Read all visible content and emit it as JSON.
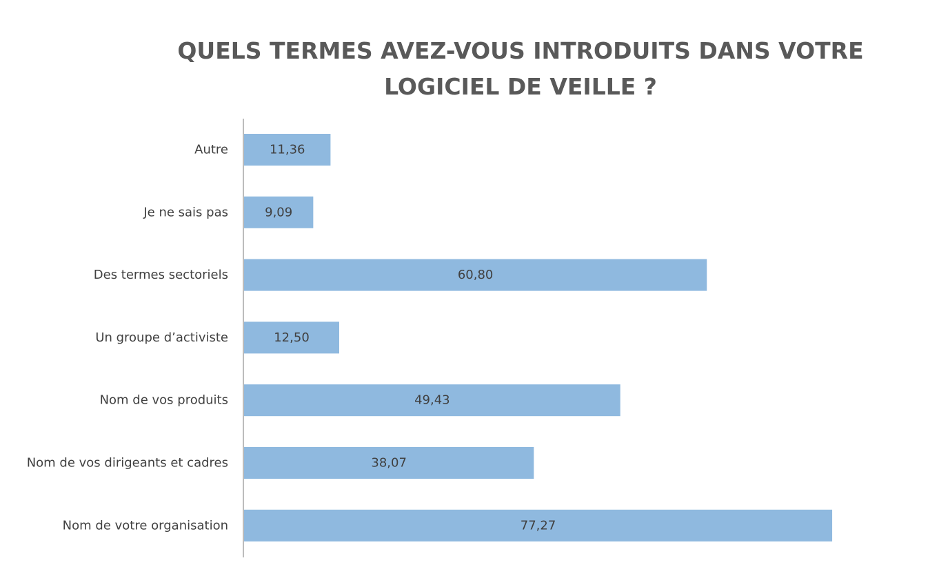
{
  "chart_data": {
    "type": "bar",
    "orientation": "horizontal",
    "title": "QUELS TERMES AVEZ-VOUS INTRODUITS DANS VOTRE LOGICIEL DE VEILLE ?",
    "categories": [
      "Autre",
      "Je ne sais pas",
      "Des termes sectoriels",
      "Un groupe d’activiste",
      "Nom de vos produits",
      "Nom de vos dirigeants et cadres",
      "Nom de votre organisation"
    ],
    "values": [
      11.36,
      9.09,
      60.8,
      12.5,
      49.43,
      38.07,
      77.27
    ],
    "value_labels": [
      "11,36",
      "9,09",
      "60,80",
      "12,50",
      "49,43",
      "38,07",
      "77,27"
    ],
    "xlim": [
      0,
      100
    ],
    "grid": false,
    "legend": "none",
    "colors": {
      "bar": "#8fb9df",
      "axis": "#a6a6a6",
      "title": "#595959",
      "text": "#404040"
    }
  }
}
